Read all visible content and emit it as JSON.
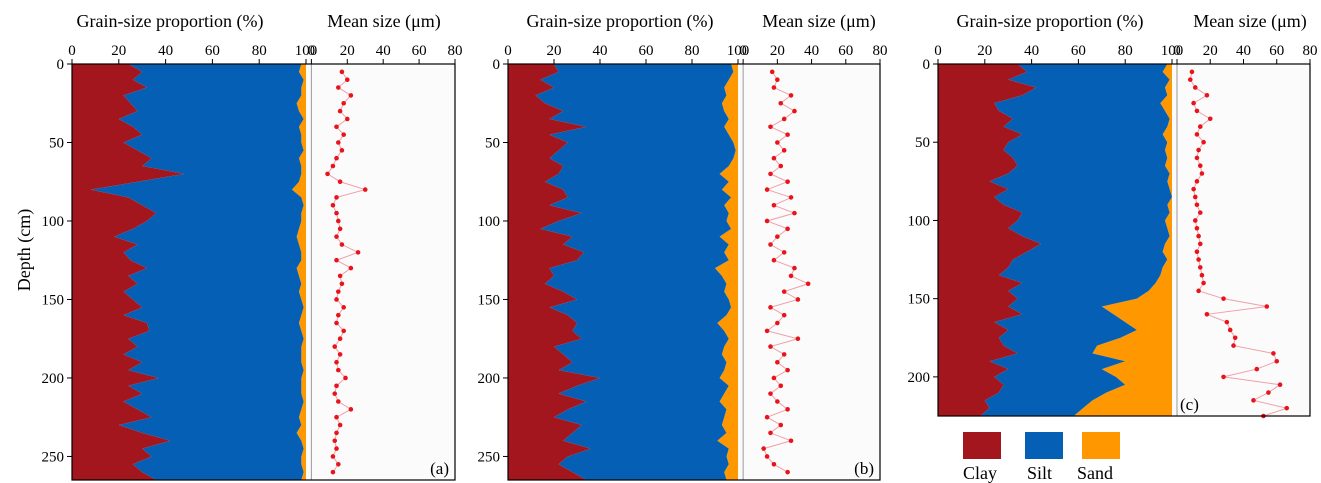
{
  "colors": {
    "clay": "#a3161d",
    "silt": "#0560b5",
    "sand": "#ff9800",
    "mean": "#e8141b",
    "mean_line": "#f0a0a8"
  },
  "y_axis": {
    "label": "Depth (cm)",
    "ticks": [
      "0",
      "50",
      "100",
      "150",
      "200",
      "250"
    ]
  },
  "chart_data": [
    {
      "type": "area",
      "panel_label": "(a)",
      "left_title": "Grain-size proportion (%)",
      "right_title": "Mean size (μm)",
      "left_ticks": [
        "0",
        "20",
        "40",
        "60",
        "80",
        "100"
      ],
      "right_ticks": [
        "0",
        "20",
        "40",
        "60",
        "80"
      ],
      "xlim_left": [
        0,
        100
      ],
      "xlim_right": [
        -3,
        80
      ],
      "ylim": [
        0,
        265
      ],
      "series_names": [
        "Clay",
        "Silt",
        "Sand"
      ],
      "depth": [
        0,
        5,
        10,
        15,
        20,
        25,
        30,
        35,
        40,
        45,
        50,
        55,
        60,
        65,
        70,
        75,
        80,
        85,
        90,
        95,
        100,
        105,
        110,
        115,
        120,
        125,
        130,
        135,
        140,
        145,
        150,
        155,
        160,
        165,
        170,
        175,
        180,
        185,
        190,
        195,
        200,
        205,
        210,
        215,
        220,
        225,
        230,
        235,
        240,
        245,
        250,
        255,
        260,
        265
      ],
      "clay": [
        24,
        30,
        26,
        32,
        22,
        25,
        28,
        20,
        26,
        30,
        22,
        28,
        34,
        30,
        48,
        28,
        8,
        24,
        30,
        36,
        32,
        26,
        18,
        28,
        22,
        25,
        32,
        24,
        28,
        22,
        26,
        30,
        22,
        32,
        33,
        24,
        28,
        22,
        30,
        24,
        37,
        24,
        30,
        22,
        28,
        34,
        20,
        30,
        42,
        30,
        34,
        26,
        30,
        36
      ],
      "silt_top": [
        98,
        97,
        99,
        98,
        98,
        96,
        97,
        99,
        97,
        98,
        98,
        99,
        97,
        98,
        98,
        97,
        94,
        98,
        99,
        98,
        98,
        97,
        96,
        97,
        98,
        98,
        96,
        97,
        98,
        97,
        98,
        99,
        98,
        97,
        98,
        99,
        98,
        98,
        98,
        99,
        98,
        98,
        98,
        99,
        98,
        97,
        98,
        96,
        98,
        99,
        98,
        98,
        99,
        98
      ],
      "mean_depth": [
        5,
        10,
        15,
        20,
        25,
        30,
        35,
        40,
        45,
        50,
        55,
        60,
        65,
        70,
        75,
        80,
        85,
        90,
        95,
        100,
        105,
        110,
        115,
        120,
        125,
        130,
        135,
        140,
        145,
        150,
        155,
        160,
        165,
        170,
        175,
        180,
        185,
        190,
        195,
        200,
        205,
        210,
        215,
        220,
        225,
        230,
        235,
        240,
        245,
        250,
        255,
        260
      ],
      "mean": [
        17,
        20,
        15,
        22,
        18,
        16,
        20,
        14,
        18,
        15,
        17,
        14,
        12,
        9,
        16,
        30,
        14,
        12,
        14,
        15,
        16,
        14,
        17,
        26,
        14,
        22,
        16,
        17,
        15,
        14,
        18,
        15,
        14,
        18,
        16,
        13,
        16,
        14,
        15,
        19,
        14,
        13,
        15,
        22,
        14,
        16,
        14,
        13,
        14,
        12,
        15,
        12
      ]
    },
    {
      "type": "area",
      "panel_label": "(b)",
      "left_title": "Grain-size proportion (%)",
      "right_title": "Mean size (μm)",
      "left_ticks": [
        "0",
        "20",
        "40",
        "60",
        "80",
        "100"
      ],
      "right_ticks": [
        "0",
        "20",
        "40",
        "60",
        "80"
      ],
      "xlim_left": [
        0,
        100
      ],
      "xlim_right": [
        -3,
        80
      ],
      "ylim": [
        0,
        265
      ],
      "series_names": [
        "Clay",
        "Silt",
        "Sand"
      ],
      "depth": [
        0,
        5,
        10,
        15,
        20,
        25,
        30,
        35,
        40,
        45,
        50,
        55,
        60,
        65,
        70,
        75,
        80,
        85,
        90,
        95,
        100,
        105,
        110,
        115,
        120,
        125,
        130,
        135,
        140,
        145,
        150,
        155,
        160,
        165,
        170,
        175,
        180,
        185,
        190,
        195,
        200,
        205,
        210,
        215,
        220,
        225,
        230,
        235,
        240,
        245,
        250,
        255,
        260,
        265
      ],
      "clay": [
        20,
        22,
        14,
        20,
        12,
        16,
        24,
        18,
        34,
        18,
        26,
        22,
        18,
        24,
        22,
        16,
        24,
        26,
        18,
        32,
        22,
        14,
        28,
        24,
        33,
        30,
        18,
        20,
        16,
        24,
        30,
        18,
        26,
        30,
        28,
        32,
        20,
        24,
        28,
        22,
        40,
        30,
        22,
        34,
        26,
        20,
        32,
        28,
        24,
        36,
        26,
        22,
        28,
        34
      ],
      "silt_top": [
        97,
        98,
        96,
        94,
        95,
        93,
        94,
        96,
        94,
        96,
        98,
        99,
        98,
        96,
        92,
        96,
        93,
        97,
        94,
        96,
        95,
        97,
        92,
        96,
        94,
        96,
        90,
        93,
        95,
        94,
        96,
        97,
        95,
        91,
        94,
        96,
        94,
        93,
        95,
        94,
        92,
        96,
        94,
        92,
        95,
        94,
        93,
        95,
        91,
        96,
        95,
        96,
        94,
        95
      ],
      "mean_depth": [
        5,
        10,
        15,
        20,
        25,
        30,
        35,
        40,
        45,
        50,
        55,
        60,
        65,
        70,
        75,
        80,
        85,
        90,
        95,
        100,
        105,
        110,
        115,
        120,
        125,
        130,
        135,
        140,
        145,
        150,
        155,
        160,
        165,
        170,
        175,
        180,
        185,
        190,
        195,
        200,
        205,
        210,
        215,
        220,
        225,
        230,
        235,
        240,
        245,
        250,
        255,
        260
      ],
      "mean": [
        17,
        20,
        18,
        28,
        22,
        30,
        24,
        16,
        26,
        20,
        24,
        18,
        22,
        16,
        26,
        14,
        28,
        18,
        30,
        14,
        26,
        20,
        16,
        24,
        18,
        30,
        28,
        38,
        24,
        32,
        16,
        24,
        20,
        14,
        32,
        16,
        24,
        20,
        26,
        18,
        22,
        16,
        20,
        26,
        14,
        22,
        16,
        28,
        12,
        14,
        18,
        26
      ]
    },
    {
      "type": "area",
      "panel_label": "(c)",
      "left_title": "Grain-size proportion (%)",
      "right_title": "Mean size (μm)",
      "left_ticks": [
        "0",
        "20",
        "40",
        "60",
        "80",
        "100"
      ],
      "right_ticks": [
        "0",
        "20",
        "40",
        "60",
        "80"
      ],
      "xlim_left": [
        0,
        100
      ],
      "xlim_right": [
        -3,
        80
      ],
      "ylim": [
        0,
        225
      ],
      "series_names": [
        "Clay",
        "Silt",
        "Sand"
      ],
      "depth": [
        0,
        5,
        10,
        15,
        20,
        25,
        30,
        35,
        40,
        45,
        50,
        55,
        60,
        65,
        70,
        75,
        80,
        85,
        90,
        95,
        100,
        105,
        110,
        115,
        120,
        125,
        130,
        135,
        140,
        145,
        150,
        155,
        160,
        165,
        170,
        175,
        180,
        185,
        190,
        195,
        200,
        205,
        210,
        215,
        220,
        225
      ],
      "clay": [
        34,
        38,
        30,
        42,
        36,
        24,
        26,
        32,
        28,
        36,
        30,
        28,
        32,
        34,
        30,
        22,
        30,
        24,
        28,
        36,
        34,
        30,
        36,
        44,
        38,
        32,
        30,
        26,
        36,
        30,
        34,
        30,
        36,
        24,
        30,
        26,
        28,
        34,
        22,
        30,
        24,
        28,
        26,
        20,
        22,
        18
      ],
      "silt_top": [
        98,
        96,
        99,
        97,
        98,
        95,
        97,
        99,
        98,
        96,
        98,
        97,
        98,
        97,
        99,
        98,
        99,
        100,
        98,
        99,
        97,
        98,
        99,
        97,
        96,
        98,
        96,
        95,
        93,
        90,
        85,
        70,
        75,
        80,
        85,
        78,
        68,
        66,
        80,
        70,
        76,
        80,
        72,
        66,
        62,
        58
      ],
      "mean_depth": [
        5,
        10,
        15,
        20,
        25,
        30,
        35,
        40,
        45,
        50,
        55,
        60,
        65,
        70,
        75,
        80,
        85,
        90,
        95,
        100,
        105,
        110,
        115,
        120,
        125,
        130,
        135,
        140,
        145,
        150,
        155,
        160,
        165,
        170,
        175,
        180,
        185,
        190,
        195,
        200,
        205,
        210,
        215,
        220,
        225
      ],
      "mean": [
        9,
        8,
        11,
        18,
        10,
        12,
        20,
        14,
        12,
        16,
        13,
        12,
        14,
        15,
        12,
        10,
        11,
        12,
        14,
        11,
        12,
        13,
        14,
        12,
        13,
        14,
        15,
        16,
        13,
        28,
        54,
        18,
        30,
        32,
        35,
        34,
        58,
        60,
        48,
        28,
        62,
        55,
        46,
        66,
        52
      ]
    }
  ],
  "legend": {
    "items": [
      {
        "name": "Clay",
        "color_key": "clay"
      },
      {
        "name": "Silt",
        "color_key": "silt"
      },
      {
        "name": "Sand",
        "color_key": "sand"
      }
    ]
  }
}
